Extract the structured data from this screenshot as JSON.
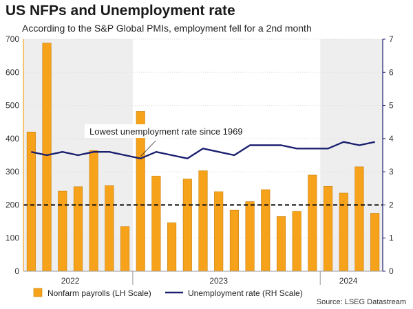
{
  "title": "US NFPs and Unemployment rate",
  "subtitle": "According to the S&P Global PMIs, employment fell for a 2nd month",
  "source": "Source: LSEG Datastream",
  "annotation": "Lowest unemployment rate since 1969",
  "colors": {
    "bar": "#f7a21b",
    "bar_edge": "#c47d08",
    "line": "#1a1f6e",
    "shade": "#eeeeee",
    "reference": "#111111"
  },
  "chart_data": {
    "type": "bar",
    "x_year_labels": [
      "2022",
      "2023",
      "2024"
    ],
    "series": [
      {
        "name": "Nonfarm payrolls (LH Scale)",
        "type": "bar",
        "axis": "left",
        "values": [
          420,
          688,
          242,
          255,
          364,
          258,
          135,
          482,
          287,
          146,
          278,
          303,
          240,
          184,
          210,
          246,
          165,
          181,
          290,
          256,
          236,
          315,
          175
        ]
      },
      {
        "name": "Unemployment rate (RH Scale)",
        "type": "line",
        "axis": "right",
        "values": [
          3.6,
          3.5,
          3.6,
          3.5,
          3.6,
          3.6,
          3.5,
          3.4,
          3.6,
          3.5,
          3.4,
          3.7,
          3.6,
          3.5,
          3.8,
          3.8,
          3.8,
          3.7,
          3.7,
          3.7,
          3.9,
          3.8,
          3.9
        ]
      }
    ],
    "left_axis": {
      "ylim": [
        0,
        700
      ],
      "ticks": [
        0,
        100,
        200,
        300,
        400,
        500,
        600,
        700
      ]
    },
    "right_axis": {
      "ylim": [
        0,
        7
      ],
      "ticks": [
        0,
        1,
        2,
        3,
        4,
        5,
        6,
        7
      ]
    },
    "reference_line": {
      "axis": "left",
      "value": 200,
      "style": "dashed"
    },
    "shaded_year_bands": [
      "2022",
      "2024"
    ],
    "legend_placement": "bottom"
  }
}
